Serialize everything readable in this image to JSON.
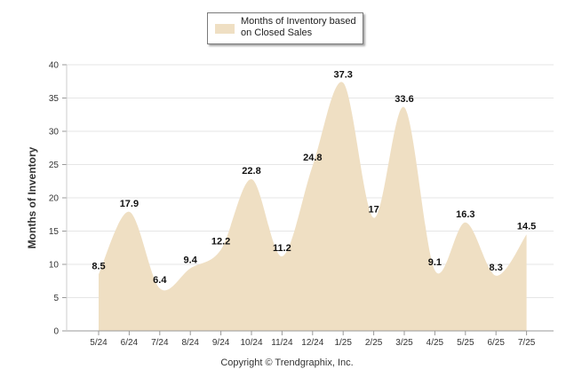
{
  "chart_data": {
    "type": "area",
    "categories": [
      "5/24",
      "6/24",
      "7/24",
      "8/24",
      "9/24",
      "10/24",
      "11/24",
      "12/24",
      "1/25",
      "2/25",
      "3/25",
      "4/25",
      "5/25",
      "6/25",
      "7/25"
    ],
    "series": [
      {
        "name": "Months of Inventory based on Closed Sales",
        "values": [
          8.5,
          17.9,
          6.4,
          9.4,
          12.2,
          22.8,
          11.2,
          24.8,
          37.3,
          17,
          33.6,
          9.1,
          16.3,
          8.3,
          14.5
        ],
        "color": "#efdfc3"
      }
    ],
    "data_labels": [
      "8.5",
      "17.9",
      "6.4",
      "9.4",
      "12.2",
      "22.8",
      "11.2",
      "24.8",
      "37.3",
      "17",
      "33.6",
      "9.1",
      "16.3",
      "8.3",
      "14.5"
    ],
    "ylabel": "Months of Inventory",
    "xlabel": "",
    "ylim": [
      0,
      40
    ],
    "yticks": [
      0,
      5,
      10,
      15,
      20,
      25,
      30,
      35,
      40
    ],
    "grid": true,
    "legend_position": "top-center"
  },
  "legend": {
    "label": "Months of Inventory based on Closed Sales",
    "color": "#efdfc3"
  },
  "footer": {
    "copyright": "Copyright © Trendgraphix, Inc."
  }
}
